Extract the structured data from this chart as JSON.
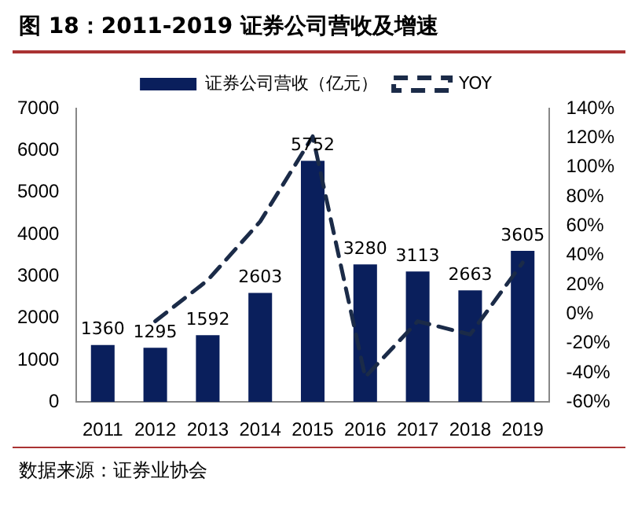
{
  "chart_data": {
    "type": "bar",
    "title": "图 18：2011-2019 证券公司营收及增速",
    "categories": [
      "2011",
      "2012",
      "2013",
      "2014",
      "2015",
      "2016",
      "2017",
      "2018",
      "2019"
    ],
    "series": [
      {
        "name": "证券公司营收（亿元）",
        "color": "#0a1f5c",
        "values": [
          1360,
          1295,
          1592,
          2603,
          5752,
          3280,
          3113,
          2663,
          3605
        ],
        "value_labels": [
          "1360",
          "1295",
          "1592",
          "2603",
          "5752",
          "3280",
          "3113",
          "2663",
          "3605"
        ]
      },
      {
        "name": "YOY",
        "type": "line",
        "axis": "y2",
        "color": "#1b2b48",
        "line_style": "dashed",
        "marker": "none",
        "values": [
          null,
          -5,
          23,
          63,
          121,
          -43,
          -5,
          -14,
          35
        ]
      }
    ],
    "ylim": [
      0,
      7000
    ],
    "yticks": [
      0,
      1000,
      2000,
      3000,
      4000,
      5000,
      6000,
      7000
    ],
    "y2lim": [
      -60,
      140
    ],
    "y2ticks": [
      {
        "value": -60,
        "label": "-60%"
      },
      {
        "value": -40,
        "label": "-40%"
      },
      {
        "value": -20,
        "label": "-20%"
      },
      {
        "value": 0,
        "label": "0%"
      },
      {
        "value": 20,
        "label": "20%"
      },
      {
        "value": 40,
        "label": "40%"
      },
      {
        "value": 60,
        "label": "60%"
      },
      {
        "value": 80,
        "label": "80%"
      },
      {
        "value": 100,
        "label": "100%"
      },
      {
        "value": 120,
        "label": "120%"
      },
      {
        "value": 140,
        "label": "140%"
      }
    ],
    "grid": false,
    "legend": "top",
    "annotations": [
      "数据来源：证券业协会"
    ]
  }
}
